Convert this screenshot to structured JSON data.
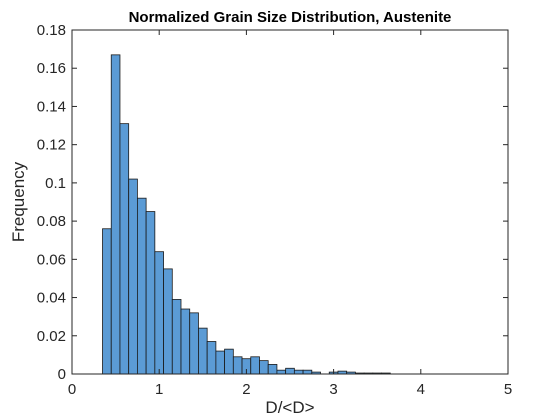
{
  "chart_data": {
    "type": "bar",
    "title": "Normalized Grain Size Distribution, Austenite",
    "xlabel": "D/<D>",
    "ylabel": "Frequency",
    "xlim": [
      0,
      5
    ],
    "ylim": [
      0,
      0.18
    ],
    "xticks": [
      0,
      1,
      2,
      3,
      4,
      5
    ],
    "yticks": [
      0,
      0.02,
      0.04,
      0.06,
      0.08,
      0.1,
      0.12,
      0.14,
      0.16,
      0.18
    ],
    "grid": false,
    "bin_width": 0.1,
    "bin_start": 0.35,
    "values": [
      0.076,
      0.167,
      0.131,
      0.102,
      0.092,
      0.085,
      0.064,
      0.055,
      0.039,
      0.034,
      0.032,
      0.024,
      0.017,
      0.012,
      0.013,
      0.009,
      0.008,
      0.009,
      0.007,
      0.005,
      0.002,
      0.003,
      0.002,
      0.002,
      0.001,
      0.0,
      0.001,
      0.0015,
      0.001,
      0.0005,
      0.0005,
      0.0005,
      0.0005
    ],
    "bar_color": "#5b9bd5"
  }
}
